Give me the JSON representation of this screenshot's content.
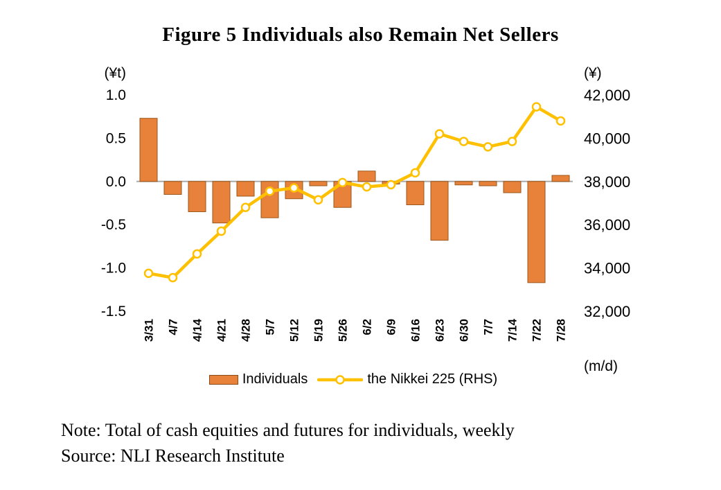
{
  "page": {
    "title": "Figure 5 Individuals also Remain Net Sellers",
    "note": "Note: Total of cash equities and futures for individuals, weekly",
    "source": "Source: NLI Research Institute"
  },
  "chart_data": {
    "type": "combo_bar_line",
    "title": "Figure 5 Individuals also Remain Net Sellers",
    "categories": [
      "3/31",
      "4/7",
      "4/14",
      "4/21",
      "4/28",
      "5/7",
      "5/12",
      "5/19",
      "5/26",
      "6/2",
      "6/9",
      "6/16",
      "6/23",
      "6/30",
      "7/7",
      "7/14",
      "7/22",
      "7/28"
    ],
    "series": [
      {
        "name": "Individuals",
        "type": "bar",
        "axis": "left",
        "values": [
          0.73,
          -0.15,
          -0.35,
          -0.48,
          -0.17,
          -0.42,
          -0.2,
          -0.05,
          -0.3,
          0.12,
          -0.03,
          -0.27,
          -0.68,
          -0.04,
          -0.05,
          -0.13,
          -1.17,
          0.07
        ]
      },
      {
        "name": "the Nikkei 225 (RHS)",
        "type": "line",
        "axis": "right",
        "values": [
          33750,
          33550,
          34650,
          35700,
          36800,
          37550,
          37700,
          37150,
          37950,
          37750,
          37850,
          38400,
          40200,
          39850,
          39600,
          39850,
          41450,
          40800
        ]
      }
    ],
    "left_axis": {
      "label": "(¥t)",
      "min": -1.5,
      "max": 1.0,
      "tick_labels": [
        "1.0",
        "0.5",
        "0.0",
        "-0.5",
        "-1.0",
        "-1.5"
      ],
      "tick_values": [
        1.0,
        0.5,
        0.0,
        -0.5,
        -1.0,
        -1.5
      ]
    },
    "right_axis": {
      "label": "(¥)",
      "min": 32000,
      "max": 42000,
      "tick_labels": [
        "42,000",
        "40,000",
        "38,000",
        "36,000",
        "34,000",
        "32,000"
      ],
      "tick_values": [
        42000,
        40000,
        38000,
        36000,
        34000,
        32000
      ]
    },
    "x_axis_label": "(m/d)",
    "legend_position": "bottom",
    "grid": false,
    "colors": {
      "bar": "#e8823b",
      "bar_border": "#9c5619",
      "line": "#ffc000",
      "marker_fill": "#ffffff",
      "zero_line": "#ababab",
      "text": "#000000"
    }
  }
}
